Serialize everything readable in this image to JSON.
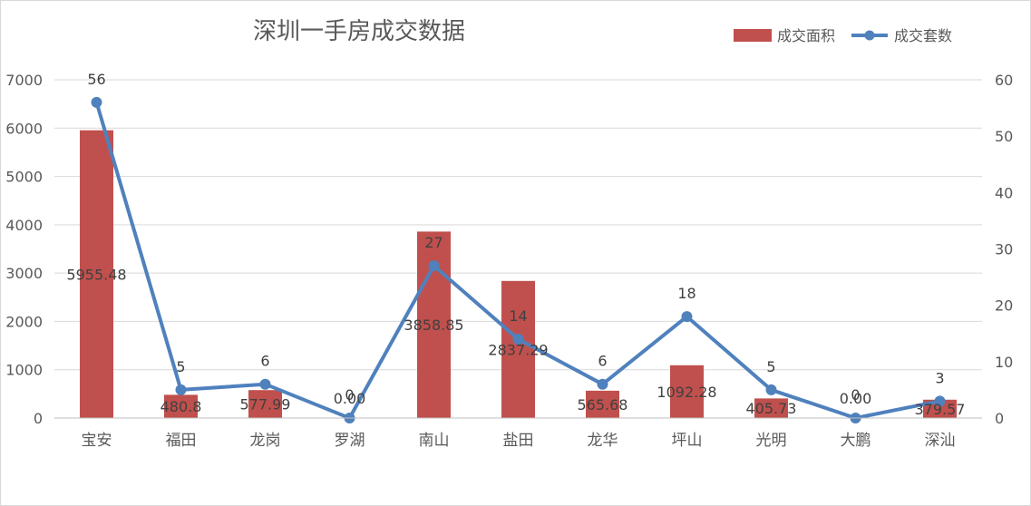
{
  "chart_data": {
    "type": "bar",
    "title": "深圳一手房成交数据",
    "categories": [
      "宝安",
      "福田",
      "龙岗",
      "罗湖",
      "南山",
      "盐田",
      "龙华",
      "坪山",
      "光明",
      "大鹏",
      "深汕"
    ],
    "series": [
      {
        "name": "成交面积",
        "type": "bar",
        "axis": "left",
        "color": "#c0504d",
        "values": [
          5955.48,
          480.8,
          577.99,
          0.0,
          3858.85,
          2837.29,
          565.68,
          1092.28,
          405.73,
          0.0,
          379.57
        ],
        "labels": [
          "5955.48",
          "480.8",
          "577.99",
          "0.00",
          "3858.85",
          "2837.29",
          "565.68",
          "1092.28",
          "405.73",
          "0.00",
          "379.57"
        ]
      },
      {
        "name": "成交套数",
        "type": "line",
        "axis": "right",
        "color": "#4f81bd",
        "values": [
          56,
          5,
          6,
          0,
          27,
          14,
          6,
          18,
          5,
          0,
          3
        ],
        "labels": [
          "56",
          "5",
          "6",
          "0",
          "27",
          "14",
          "6",
          "18",
          "5",
          "0",
          "3"
        ]
      }
    ],
    "y_left": {
      "min": 0,
      "max": 7000,
      "ticks": [
        "0",
        "1000",
        "2000",
        "3000",
        "4000",
        "5000",
        "6000",
        "7000"
      ]
    },
    "y_right": {
      "min": 0,
      "max": 60,
      "ticks": [
        "0",
        "10",
        "20",
        "30",
        "40",
        "50",
        "60"
      ]
    },
    "grid": true,
    "legend_position": "top-right"
  }
}
